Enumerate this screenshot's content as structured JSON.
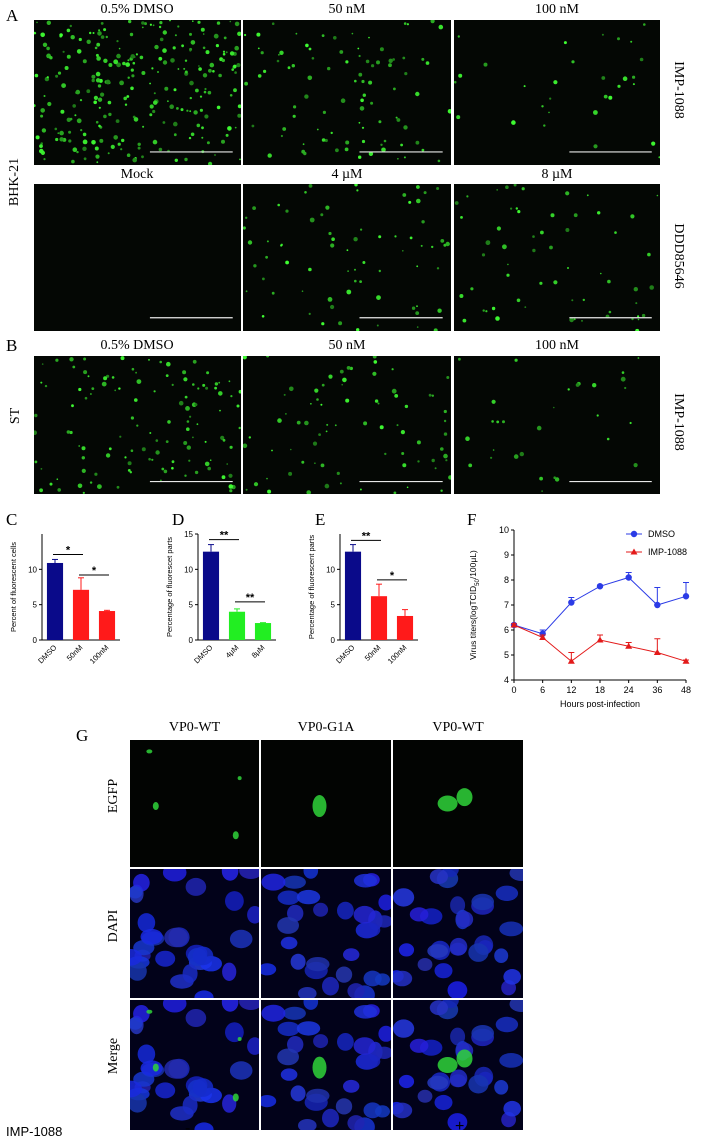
{
  "panel_letters": {
    "A": "A",
    "B": "B",
    "C": "C",
    "D": "D",
    "E": "E",
    "F": "F",
    "G": "G"
  },
  "panel_a": {
    "cell_label": "BHK-21",
    "row1": {
      "drug": "IMP-1088",
      "conditions": [
        "0.5% DMSO",
        "50 nM",
        "100 nM"
      ]
    },
    "row2": {
      "drug": "DDD85646",
      "conditions": [
        "Mock",
        "4 µM",
        "8 µM"
      ]
    }
  },
  "panel_b": {
    "cell_label": "ST",
    "drug": "IMP-1088",
    "conditions": [
      "0.5% DMSO",
      "50 nM",
      "100 nM"
    ]
  },
  "panel_g": {
    "columns": [
      "VP0-WT",
      "VP0-G1A",
      "VP0-WT"
    ],
    "rows": [
      "EGFP",
      "DAPI",
      "Merge"
    ],
    "treatment_label": "IMP-1088",
    "treatment_values": [
      "-",
      "-",
      "+"
    ]
  },
  "chart_data": [
    {
      "panel": "C",
      "type": "bar",
      "ylabel": "Percent of fluorescent cells",
      "categories": [
        "DMSO",
        "50nM",
        "100nM"
      ],
      "values": [
        10.9,
        7.1,
        4.1
      ],
      "errors": [
        0.5,
        1.7,
        0.1
      ],
      "colors": [
        "#0a0a8a",
        "#ff1a1a",
        "#ff1a1a"
      ],
      "ylim": [
        0,
        15
      ],
      "yticks": [
        "0",
        "5",
        "10"
      ],
      "ytick_values": [
        0,
        5,
        10
      ],
      "significance": [
        {
          "from": 0,
          "to": 1,
          "label": "*",
          "y": 12.1
        },
        {
          "from": 1,
          "to": 2,
          "label": "*",
          "y": 9.2
        }
      ]
    },
    {
      "panel": "D",
      "type": "bar",
      "ylabel": "Percentage of fluorescet parts",
      "categories": [
        "DMSO",
        "4μM",
        "8μM"
      ],
      "values": [
        12.5,
        4.0,
        2.4
      ],
      "errors": [
        1.0,
        0.4,
        0.05
      ],
      "colors": [
        "#0a0a8a",
        "#22ee22",
        "#22ee22"
      ],
      "ylim": [
        0,
        15
      ],
      "yticks": [
        "0",
        "5",
        "10",
        "15"
      ],
      "ytick_values": [
        0,
        5,
        10,
        15
      ],
      "significance": [
        {
          "from": 0,
          "to": 1,
          "label": "**",
          "y": 14.2
        },
        {
          "from": 1,
          "to": 2,
          "label": "**",
          "y": 5.4
        }
      ]
    },
    {
      "panel": "E",
      "type": "bar",
      "ylabel": "Percentage of fluorescent parts",
      "categories": [
        "DMSO",
        "50nM",
        "100nM"
      ],
      "values": [
        12.5,
        6.2,
        3.4
      ],
      "errors": [
        1.0,
        1.7,
        0.9
      ],
      "colors": [
        "#0a0a8a",
        "#ff1a1a",
        "#ff1a1a"
      ],
      "ylim": [
        0,
        15
      ],
      "yticks": [
        "0",
        "5",
        "10"
      ],
      "ytick_values": [
        0,
        5,
        10
      ],
      "significance": [
        {
          "from": 0,
          "to": 1,
          "label": "**",
          "y": 14.1
        },
        {
          "from": 1,
          "to": 2,
          "label": "*",
          "y": 8.5
        }
      ]
    },
    {
      "panel": "F",
      "type": "line",
      "xlabel": "Hours post-infection",
      "ylabel": "Virus titers(logTCID",
      "ylabel_sub": "50",
      "ylabel_tail": "/100μL)",
      "x": [
        0,
        6,
        12,
        18,
        24,
        36,
        48
      ],
      "xticks": [
        "0",
        "6",
        "12",
        "18",
        "24",
        "36",
        "48"
      ],
      "ylim": [
        4,
        10
      ],
      "yticks": [
        "4",
        "5",
        "6",
        "7",
        "8",
        "9",
        "10"
      ],
      "ytick_values": [
        4,
        5,
        6,
        7,
        8,
        9,
        10
      ],
      "legend_position": "top-right",
      "series": [
        {
          "name": "DMSO",
          "color": "#2b3be6",
          "marker": "circle",
          "values": [
            6.2,
            5.85,
            7.1,
            7.75,
            8.1,
            7.0,
            7.35
          ],
          "errors": [
            0.05,
            0.15,
            0.2,
            0.05,
            0.2,
            0.7,
            0.55
          ]
        },
        {
          "name": "IMP-1088",
          "color": "#e31a1a",
          "marker": "triangle",
          "values": [
            6.2,
            5.7,
            4.75,
            5.6,
            5.35,
            5.1,
            4.75
          ],
          "errors": [
            0.05,
            0.1,
            0.35,
            0.2,
            0.15,
            0.55,
            0.05
          ]
        }
      ]
    }
  ]
}
